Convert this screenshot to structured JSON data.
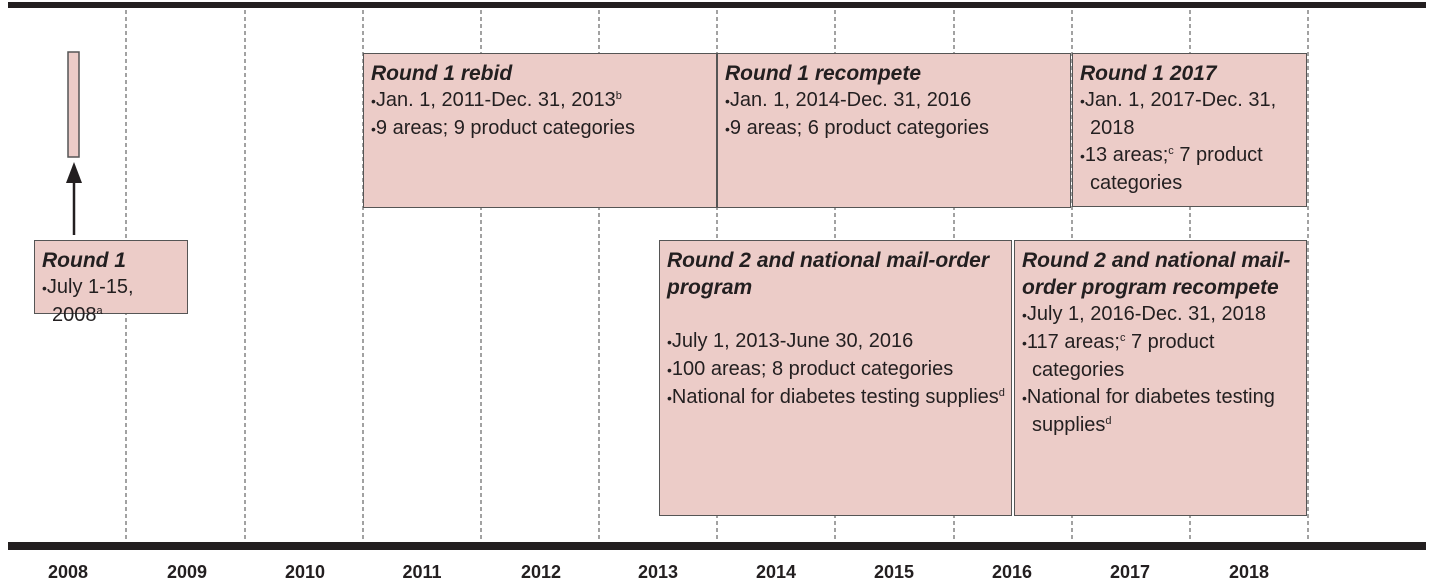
{
  "years": [
    "2008",
    "2009",
    "2010",
    "2011",
    "2012",
    "2013",
    "2014",
    "2015",
    "2016",
    "2017",
    "2018"
  ],
  "boxes": [
    {
      "title": "Round 1",
      "bullets": [
        [
          {
            "t": "July 1-15, 2008"
          },
          {
            "t": "a",
            "sup": true
          }
        ]
      ]
    },
    {
      "title": "Round 1 rebid",
      "bullets": [
        [
          {
            "t": "Jan. 1, 2011-Dec. 31, 2013"
          },
          {
            "t": "b",
            "sup": true
          }
        ],
        [
          {
            "t": "9 areas; 9 product categories"
          }
        ]
      ]
    },
    {
      "title": "Round 1 recompete",
      "bullets": [
        [
          {
            "t": "Jan. 1, 2014-Dec. 31, 2016"
          }
        ],
        [
          {
            "t": "9 areas; 6 product categories"
          }
        ]
      ]
    },
    {
      "title": "Round 1 2017",
      "bullets": [
        [
          {
            "t": "Jan. 1, 2017-Dec. 31, 2018"
          }
        ],
        [
          {
            "t": "13 areas;"
          },
          {
            "t": "c",
            "sup": true
          },
          {
            "t": " 7 product categories"
          }
        ]
      ]
    },
    {
      "title": "Round 2 and national mail-order program",
      "bullets": [
        [
          {
            "t": "July 1, 2013-June 30, 2016"
          }
        ],
        [
          {
            "t": "100 areas; 8 product categories"
          }
        ],
        [
          {
            "t": "National for diabetes testing supplies"
          },
          {
            "t": "d",
            "sup": true
          }
        ]
      ]
    },
    {
      "title": "Round 2 and national mail-order program recompete",
      "bullets": [
        [
          {
            "t": "July 1, 2016-Dec. 31, 2018"
          }
        ],
        [
          {
            "t": "117 areas;"
          },
          {
            "t": "c",
            "sup": true
          },
          {
            "t": " 7 product categories"
          }
        ],
        [
          {
            "t": "National for diabetes testing supplies"
          },
          {
            "t": "d",
            "sup": true
          }
        ]
      ]
    }
  ]
}
